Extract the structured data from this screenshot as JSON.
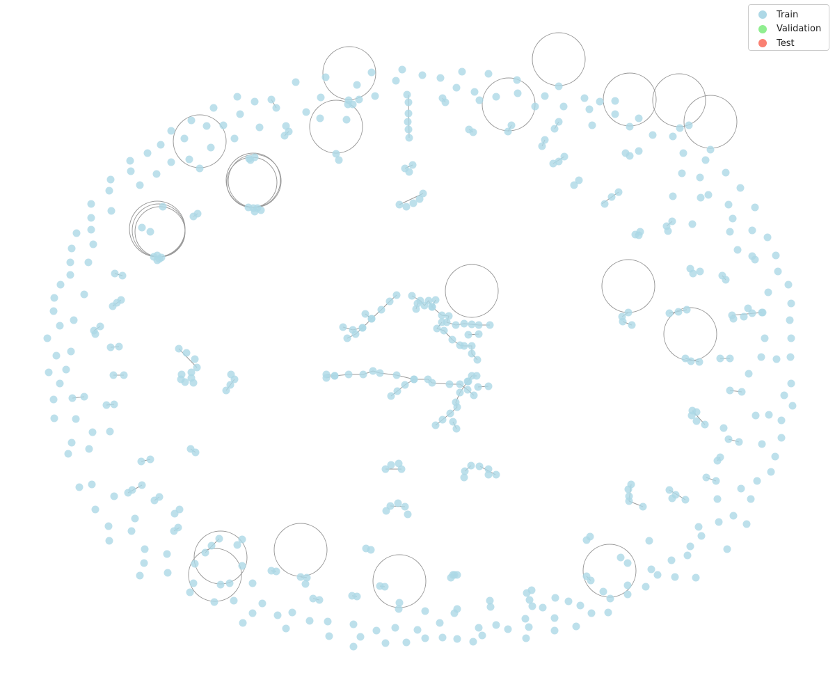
{
  "legend": {
    "items": [
      {
        "label": "Train",
        "color": "#add8e6"
      },
      {
        "label": "Validation",
        "color": "#90ee90"
      },
      {
        "label": "Test",
        "color": "#fa8072"
      }
    ]
  },
  "colors": {
    "node": "#add8e6",
    "edge": "#999999"
  }
}
